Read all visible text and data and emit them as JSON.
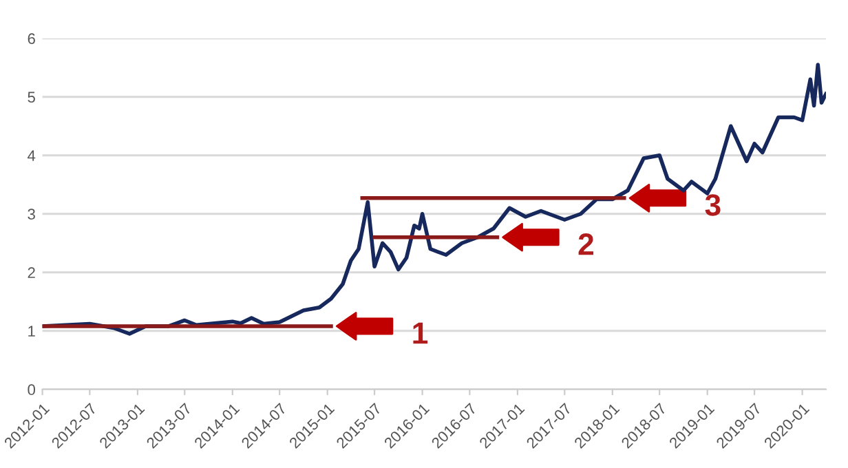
{
  "chart_data": {
    "type": "line",
    "xlim": [
      "2012-01",
      "2020-04"
    ],
    "ylim": [
      0,
      6
    ],
    "xticks": [
      "2012-01",
      "2012-07",
      "2013-01",
      "2013-07",
      "2014-01",
      "2014-07",
      "2015-01",
      "2015-07",
      "2016-01",
      "2016-07",
      "2017-01",
      "2017-07",
      "2018-01",
      "2018-07",
      "2019-01",
      "2019-07",
      "2020-01"
    ],
    "yticks": [
      0,
      1,
      2,
      3,
      4,
      5,
      6
    ],
    "grid": "y",
    "legend": false,
    "series": [
      {
        "color": "#16285c",
        "x": [
          "2012-01-01",
          "2012-04-01",
          "2012-07-01",
          "2012-10-01",
          "2012-12-01",
          "2013-02-01",
          "2013-05-01",
          "2013-07-01",
          "2013-08-15",
          "2014-01-01",
          "2014-02-01",
          "2014-03-15",
          "2014-05-01",
          "2014-07-01",
          "2014-10-01",
          "2014-12-01",
          "2015-01-15",
          "2015-03-01",
          "2015-04-01",
          "2015-05-01",
          "2015-06-05",
          "2015-07-01",
          "2015-08-01",
          "2015-09-01",
          "2015-10-01",
          "2015-11-01",
          "2015-12-01",
          "2015-12-20",
          "2016-01-01",
          "2016-02-01",
          "2016-03-01",
          "2016-04-01",
          "2016-06-01",
          "2016-08-01",
          "2016-10-01",
          "2016-12-01",
          "2017-02-01",
          "2017-04-01",
          "2017-07-01",
          "2017-09-01",
          "2017-11-01",
          "2018-01-01",
          "2018-03-01",
          "2018-05-01",
          "2018-07-01",
          "2018-08-01",
          "2018-10-01",
          "2018-11-01",
          "2019-01-01",
          "2019-02-01",
          "2019-04-01",
          "2019-06-01",
          "2019-07-01",
          "2019-08-01",
          "2019-10-01",
          "2019-12-01",
          "2020-01-01",
          "2020-02-01",
          "2020-02-15",
          "2020-03-01",
          "2020-03-15",
          "2020-04-01"
        ],
        "values": [
          1.08,
          1.1,
          1.12,
          1.05,
          0.95,
          1.08,
          1.08,
          1.18,
          1.1,
          1.16,
          1.13,
          1.22,
          1.12,
          1.15,
          1.35,
          1.4,
          1.55,
          1.8,
          2.2,
          2.4,
          3.2,
          2.1,
          2.5,
          2.35,
          2.05,
          2.25,
          2.8,
          2.75,
          3.0,
          2.4,
          2.35,
          2.3,
          2.5,
          2.6,
          2.75,
          3.1,
          2.95,
          3.05,
          2.9,
          3.0,
          3.25,
          3.25,
          3.4,
          3.95,
          4.0,
          3.6,
          3.4,
          3.55,
          3.35,
          3.6,
          4.5,
          3.9,
          4.2,
          4.05,
          4.65,
          4.65,
          4.6,
          5.3,
          4.85,
          5.55,
          4.9,
          5.05
        ]
      },
      {
        "color": "#8b1a1a",
        "x": [
          "2012-01-01",
          "2015-01-15"
        ],
        "values": [
          1.08,
          1.08
        ]
      },
      {
        "color": "#8b1a1a",
        "x": [
          "2015-07-01",
          "2016-10-15"
        ],
        "values": [
          2.6,
          2.6
        ]
      },
      {
        "color": "#8b1a1a",
        "x": [
          "2015-05-15",
          "2018-02-15"
        ],
        "values": [
          3.27,
          3.27
        ]
      }
    ],
    "annotations": [
      {
        "text": "1",
        "x": "2015-01-15",
        "y": 1.08
      },
      {
        "text": "2",
        "x": "2016-10-15",
        "y": 2.6
      },
      {
        "text": "3",
        "x": "2018-02-15",
        "y": 3.27
      }
    ]
  }
}
